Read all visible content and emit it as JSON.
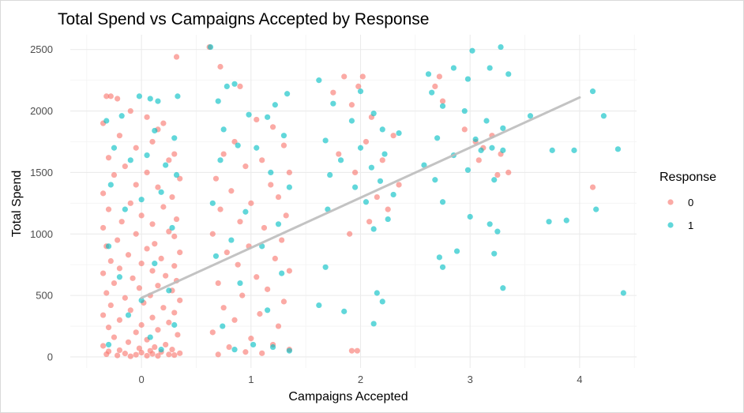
{
  "chart_data": {
    "type": "scatter",
    "title": "Total Spend vs Campaigns Accepted by Response",
    "xlabel": "Campaigns Accepted",
    "ylabel": "Total Spend",
    "xlim": [
      -0.65,
      4.52
    ],
    "ylim": [
      -90,
      2620
    ],
    "x_ticks": [
      0,
      1,
      2,
      3,
      4
    ],
    "y_ticks": [
      0,
      500,
      1000,
      1500,
      2000,
      2500
    ],
    "grid": true,
    "legend": {
      "title": "Response",
      "placement": "right",
      "entries": [
        {
          "label": "0",
          "color": "#F8766D"
        },
        {
          "label": "1",
          "color": "#00BFC4"
        }
      ]
    },
    "trend_line": {
      "x": [
        0,
        4
      ],
      "y": [
        480,
        2110
      ],
      "color": "#bdbdbd"
    },
    "series": [
      {
        "name": "0",
        "color": "#F8766D",
        "points": [
          [
            0.32,
            2440
          ],
          [
            -0.32,
            2120
          ],
          [
            -0.28,
            2120
          ],
          [
            -0.22,
            2100
          ],
          [
            -0.1,
            2000
          ],
          [
            0.05,
            1950
          ],
          [
            0.2,
            1900
          ],
          [
            -0.35,
            1900
          ],
          [
            0.15,
            1850
          ],
          [
            -0.2,
            1800
          ],
          [
            0.1,
            1750
          ],
          [
            -0.05,
            1700
          ],
          [
            0.3,
            1650
          ],
          [
            -0.3,
            1620
          ],
          [
            0.25,
            1600
          ],
          [
            -0.15,
            1550
          ],
          [
            0.05,
            1500
          ],
          [
            -0.25,
            1480
          ],
          [
            0.35,
            1450
          ],
          [
            -0.05,
            1400
          ],
          [
            0.15,
            1380
          ],
          [
            -0.35,
            1330
          ],
          [
            0.28,
            1300
          ],
          [
            -0.1,
            1250
          ],
          [
            0.2,
            1220
          ],
          [
            -0.3,
            1200
          ],
          [
            0.0,
            1150
          ],
          [
            0.32,
            1120
          ],
          [
            -0.18,
            1100
          ],
          [
            0.1,
            1080
          ],
          [
            -0.35,
            1050
          ],
          [
            0.25,
            1020
          ],
          [
            -0.05,
            1000
          ],
          [
            0.3,
            980
          ],
          [
            -0.22,
            950
          ],
          [
            0.12,
            920
          ],
          [
            -0.32,
            900
          ],
          [
            0.05,
            880
          ],
          [
            0.35,
            850
          ],
          [
            -0.12,
            830
          ],
          [
            0.18,
            800
          ],
          [
            -0.28,
            780
          ],
          [
            0.0,
            760
          ],
          [
            0.3,
            740
          ],
          [
            -0.2,
            720
          ],
          [
            0.1,
            700
          ],
          [
            -0.35,
            680
          ],
          [
            0.22,
            660
          ],
          [
            -0.08,
            640
          ],
          [
            0.32,
            620
          ],
          [
            -0.25,
            600
          ],
          [
            0.15,
            580
          ],
          [
            -0.02,
            560
          ],
          [
            0.28,
            540
          ],
          [
            -0.32,
            520
          ],
          [
            0.08,
            500
          ],
          [
            -0.15,
            480
          ],
          [
            0.35,
            460
          ],
          [
            0.02,
            440
          ],
          [
            -0.28,
            420
          ],
          [
            0.2,
            400
          ],
          [
            -0.1,
            380
          ],
          [
            0.3,
            360
          ],
          [
            -0.35,
            340
          ],
          [
            0.1,
            320
          ],
          [
            -0.2,
            300
          ],
          [
            0.25,
            280
          ],
          [
            0.0,
            260
          ],
          [
            -0.3,
            240
          ],
          [
            0.15,
            220
          ],
          [
            -0.05,
            200
          ],
          [
            0.33,
            180
          ],
          [
            -0.25,
            160
          ],
          [
            0.05,
            140
          ],
          [
            -0.12,
            120
          ],
          [
            0.22,
            100
          ],
          [
            -0.35,
            90
          ],
          [
            0.12,
            80
          ],
          [
            -0.02,
            70
          ],
          [
            0.28,
            60
          ],
          [
            -0.2,
            55
          ],
          [
            0.08,
            50
          ],
          [
            -0.3,
            45
          ],
          [
            0.18,
            40
          ],
          [
            0.0,
            35
          ],
          [
            0.35,
            30
          ],
          [
            -0.15,
            28
          ],
          [
            0.1,
            25
          ],
          [
            -0.32,
            22
          ],
          [
            0.25,
            20
          ],
          [
            -0.05,
            18
          ],
          [
            0.3,
            15
          ],
          [
            -0.22,
            12
          ],
          [
            0.05,
            10
          ],
          [
            0.15,
            8
          ],
          [
            -0.1,
            5
          ],
          [
            0.62,
            2520
          ],
          [
            0.72,
            2360
          ],
          [
            0.9,
            2200
          ],
          [
            1.05,
            1930
          ],
          [
            1.2,
            1870
          ],
          [
            0.85,
            1750
          ],
          [
            1.3,
            1720
          ],
          [
            0.75,
            1650
          ],
          [
            1.1,
            1600
          ],
          [
            0.95,
            1550
          ],
          [
            1.35,
            1500
          ],
          [
            0.68,
            1450
          ],
          [
            1.18,
            1400
          ],
          [
            0.82,
            1350
          ],
          [
            1.25,
            1300
          ],
          [
            1.0,
            1250
          ],
          [
            0.72,
            1200
          ],
          [
            1.32,
            1150
          ],
          [
            0.9,
            1100
          ],
          [
            1.12,
            1050
          ],
          [
            0.65,
            1000
          ],
          [
            1.28,
            950
          ],
          [
            0.98,
            900
          ],
          [
            0.78,
            850
          ],
          [
            1.22,
            800
          ],
          [
            0.88,
            750
          ],
          [
            1.35,
            700
          ],
          [
            1.05,
            650
          ],
          [
            0.7,
            600
          ],
          [
            1.15,
            550
          ],
          [
            0.92,
            500
          ],
          [
            1.3,
            450
          ],
          [
            0.75,
            400
          ],
          [
            1.08,
            350
          ],
          [
            0.85,
            300
          ],
          [
            1.25,
            250
          ],
          [
            0.65,
            200
          ],
          [
            1.0,
            150
          ],
          [
            1.2,
            100
          ],
          [
            0.8,
            80
          ],
          [
            1.35,
            60
          ],
          [
            0.95,
            40
          ],
          [
            1.1,
            30
          ],
          [
            0.7,
            20
          ],
          [
            1.85,
            2280
          ],
          [
            2.02,
            2280
          ],
          [
            1.98,
            2200
          ],
          [
            1.75,
            2150
          ],
          [
            1.92,
            2050
          ],
          [
            2.1,
            1950
          ],
          [
            2.3,
            1800
          ],
          [
            2.05,
            1750
          ],
          [
            1.8,
            1650
          ],
          [
            2.2,
            1600
          ],
          [
            1.95,
            1500
          ],
          [
            2.35,
            1400
          ],
          [
            2.15,
            1300
          ],
          [
            2.25,
            1200
          ],
          [
            2.08,
            1100
          ],
          [
            1.9,
            1000
          ],
          [
            1.92,
            50
          ],
          [
            1.97,
            50
          ],
          [
            2.72,
            2280
          ],
          [
            2.68,
            2200
          ],
          [
            2.75,
            2080
          ],
          [
            2.95,
            1850
          ],
          [
            3.2,
            1800
          ],
          [
            3.12,
            1700
          ],
          [
            3.28,
            1650
          ],
          [
            3.08,
            1600
          ],
          [
            3.35,
            1500
          ],
          [
            3.25,
            1480
          ],
          [
            3.05,
            1750
          ],
          [
            4.12,
            1380
          ]
        ]
      },
      {
        "name": "1",
        "color": "#00BFC4",
        "points": [
          [
            -0.02,
            2120
          ],
          [
            0.08,
            2100
          ],
          [
            0.15,
            2080
          ],
          [
            0.33,
            2120
          ],
          [
            -0.18,
            1960
          ],
          [
            -0.32,
            1920
          ],
          [
            0.12,
            1840
          ],
          [
            0.3,
            1780
          ],
          [
            -0.25,
            1700
          ],
          [
            0.05,
            1640
          ],
          [
            -0.1,
            1600
          ],
          [
            0.22,
            1560
          ],
          [
            0.32,
            1480
          ],
          [
            -0.28,
            1400
          ],
          [
            0.18,
            1340
          ],
          [
            0.0,
            1280
          ],
          [
            -0.15,
            1200
          ],
          [
            0.28,
            1050
          ],
          [
            -0.3,
            900
          ],
          [
            0.12,
            760
          ],
          [
            -0.2,
            650
          ],
          [
            0.25,
            540
          ],
          [
            0.0,
            460
          ],
          [
            -0.12,
            340
          ],
          [
            0.3,
            260
          ],
          [
            0.08,
            160
          ],
          [
            -0.3,
            100
          ],
          [
            0.18,
            60
          ],
          [
            0.63,
            2520
          ],
          [
            0.78,
            2200
          ],
          [
            0.85,
            2220
          ],
          [
            1.33,
            2140
          ],
          [
            0.7,
            2080
          ],
          [
            1.22,
            2050
          ],
          [
            0.98,
            1970
          ],
          [
            1.15,
            1950
          ],
          [
            0.75,
            1850
          ],
          [
            1.3,
            1800
          ],
          [
            0.88,
            1720
          ],
          [
            1.05,
            1700
          ],
          [
            0.72,
            1600
          ],
          [
            1.18,
            1500
          ],
          [
            1.35,
            1380
          ],
          [
            0.65,
            1250
          ],
          [
            0.95,
            1180
          ],
          [
            1.25,
            1080
          ],
          [
            0.82,
            950
          ],
          [
            1.1,
            900
          ],
          [
            0.68,
            820
          ],
          [
            1.28,
            680
          ],
          [
            0.9,
            600
          ],
          [
            1.15,
            380
          ],
          [
            0.74,
            250
          ],
          [
            1.02,
            100
          ],
          [
            1.2,
            80
          ],
          [
            0.85,
            60
          ],
          [
            1.35,
            50
          ],
          [
            1.62,
            2250
          ],
          [
            2.0,
            2160
          ],
          [
            1.75,
            2060
          ],
          [
            2.12,
            1980
          ],
          [
            1.92,
            1920
          ],
          [
            2.2,
            1850
          ],
          [
            2.35,
            1820
          ],
          [
            1.68,
            1760
          ],
          [
            2.0,
            1700
          ],
          [
            2.22,
            1650
          ],
          [
            1.82,
            1600
          ],
          [
            2.1,
            1540
          ],
          [
            1.72,
            1480
          ],
          [
            2.18,
            1430
          ],
          [
            1.95,
            1380
          ],
          [
            2.3,
            1320
          ],
          [
            2.05,
            1260
          ],
          [
            1.7,
            1200
          ],
          [
            2.25,
            1120
          ],
          [
            2.12,
            1040
          ],
          [
            1.68,
            730
          ],
          [
            2.15,
            520
          ],
          [
            1.62,
            420
          ],
          [
            2.2,
            450
          ],
          [
            1.85,
            370
          ],
          [
            2.12,
            270
          ],
          [
            2.62,
            2300
          ],
          [
            2.85,
            2350
          ],
          [
            3.02,
            2490
          ],
          [
            3.28,
            2520
          ],
          [
            3.35,
            2300
          ],
          [
            2.98,
            2260
          ],
          [
            3.18,
            2350
          ],
          [
            2.65,
            2150
          ],
          [
            2.75,
            2040
          ],
          [
            2.95,
            2000
          ],
          [
            3.15,
            1920
          ],
          [
            3.3,
            1860
          ],
          [
            2.7,
            1780
          ],
          [
            3.05,
            1770
          ],
          [
            3.2,
            1700
          ],
          [
            2.85,
            1640
          ],
          [
            3.1,
            1680
          ],
          [
            2.58,
            1560
          ],
          [
            2.98,
            1520
          ],
          [
            3.22,
            1440
          ],
          [
            2.68,
            1440
          ],
          [
            2.75,
            1260
          ],
          [
            3.0,
            1140
          ],
          [
            2.88,
            860
          ],
          [
            3.22,
            840
          ],
          [
            2.72,
            810
          ],
          [
            2.75,
            730
          ],
          [
            3.3,
            560
          ],
          [
            3.18,
            1080
          ],
          [
            3.25,
            1020
          ],
          [
            3.3,
            1680
          ],
          [
            3.55,
            1960
          ],
          [
            3.75,
            1680
          ],
          [
            3.95,
            1680
          ],
          [
            3.72,
            1100
          ],
          [
            3.88,
            1110
          ],
          [
            4.12,
            2160
          ],
          [
            4.22,
            1960
          ],
          [
            4.35,
            1690
          ],
          [
            4.15,
            1200
          ],
          [
            4.4,
            520
          ]
        ]
      }
    ]
  }
}
